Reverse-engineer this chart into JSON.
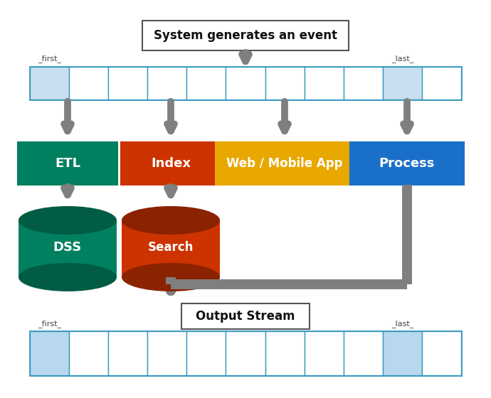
{
  "title": "System generates an event",
  "output_stream_label": "Output Stream",
  "first_label": "_first_",
  "last_label": "_last_",
  "bg_color": "#ffffff",
  "stream_border_color": "#3a9abf",
  "stream_cell_color": "#ffffff",
  "stream_first_cell_color": "#c8dff0",
  "stream_last_cell_color": "#c8dff0",
  "stream_out_cell_color": "#ffffff",
  "stream_out_first_cell_color": "#b8d8ee",
  "arrow_color": "#7f7f7f",
  "title_box_border": "#555555",
  "etl_color": "#008060",
  "etl_dark": "#005c44",
  "index_color": "#cc3300",
  "index_dark": "#8b2200",
  "web_color": "#e8a800",
  "proc_color": "#1a70c8",
  "white": "#ffffff",
  "black": "#111111",
  "n_input_cells": 11,
  "n_output_cells": 11,
  "figsize": [
    6.9,
    5.6
  ],
  "dpi": 100
}
